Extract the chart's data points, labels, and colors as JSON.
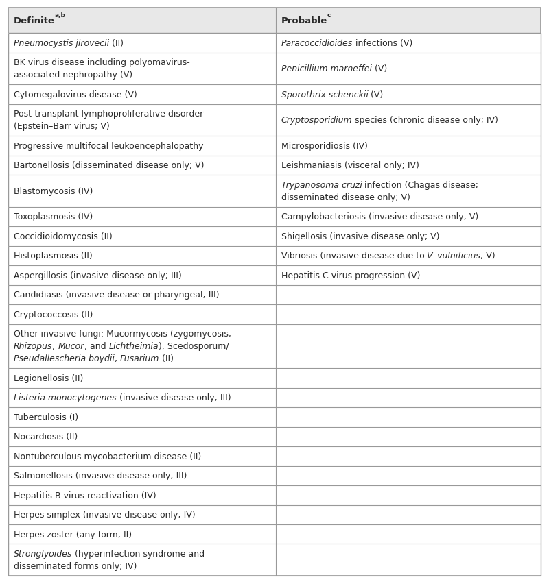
{
  "col1_header": "Definite",
  "col1_header_super": "a,b",
  "col2_header": "Probable",
  "col2_header_super": "c",
  "rows": [
    {
      "col1_lines": [
        [
          "Pneumocystis jirovecii",
          true,
          " (II)",
          false
        ]
      ],
      "col2_lines": [
        [
          "Paracoccidioides",
          true,
          " infections (V)",
          false
        ]
      ]
    },
    {
      "col1_lines": [
        [
          "BK virus disease including polyomavirus-",
          false
        ],
        [
          "associated nephropathy (V)",
          false
        ]
      ],
      "col2_lines": [
        [
          "Penicillium marneffei",
          true,
          " (V)",
          false
        ]
      ]
    },
    {
      "col1_lines": [
        [
          "Cytomegalovirus disease (V)",
          false
        ]
      ],
      "col2_lines": [
        [
          "Sporothrix schenckii",
          true,
          " (V)",
          false
        ]
      ]
    },
    {
      "col1_lines": [
        [
          "Post-transplant lymphoproliferative disorder",
          false
        ],
        [
          "(Epstein–Barr virus; V)",
          false
        ]
      ],
      "col2_lines": [
        [
          "Cryptosporidium",
          true,
          " species (chronic disease only; IV)",
          false
        ]
      ]
    },
    {
      "col1_lines": [
        [
          "Progressive multifocal leukoencephalopathy",
          false
        ]
      ],
      "col2_lines": [
        [
          "Microsporidiosis (IV)",
          false
        ]
      ]
    },
    {
      "col1_lines": [
        [
          "Bartonellosis (disseminated disease only; V)",
          false
        ]
      ],
      "col2_lines": [
        [
          "Leishmaniasis (visceral only; IV)",
          false
        ]
      ]
    },
    {
      "col1_lines": [
        [
          "Blastomycosis (IV)",
          false
        ]
      ],
      "col2_lines": [
        [
          "Trypanosoma cruzi",
          true,
          " infection (Chagas disease;",
          false
        ],
        [
          "disseminated disease only; V)",
          false
        ]
      ]
    },
    {
      "col1_lines": [
        [
          "Toxoplasmosis (IV)",
          false
        ]
      ],
      "col2_lines": [
        [
          "Campylobacteriosis (invasive disease only; V)",
          false
        ]
      ]
    },
    {
      "col1_lines": [
        [
          "Coccidioidomycosis (II)",
          false
        ]
      ],
      "col2_lines": [
        [
          "Shigellosis (invasive disease only; V)",
          false
        ]
      ]
    },
    {
      "col1_lines": [
        [
          "Histoplasmosis (II)",
          false
        ]
      ],
      "col2_lines": [
        [
          "Vibriosis (invasive disease due to ",
          false,
          "V. vulnificius",
          true,
          "; V)",
          false
        ]
      ]
    },
    {
      "col1_lines": [
        [
          "Aspergillosis (invasive disease only; III)",
          false
        ]
      ],
      "col2_lines": [
        [
          "Hepatitis C virus progression (V)",
          false
        ]
      ]
    },
    {
      "col1_lines": [
        [
          "Candidiasis (invasive disease or pharyngeal; III)",
          false
        ]
      ],
      "col2_lines": []
    },
    {
      "col1_lines": [
        [
          "Cryptococcosis (II)",
          false
        ]
      ],
      "col2_lines": []
    },
    {
      "col1_lines": [
        [
          "Other invasive fungi: Mucormycosis (zygomycosis;",
          false
        ],
        [
          "Rhizopus",
          true,
          ", ",
          false,
          "Mucor",
          true,
          ", and ",
          false,
          "Lichtheimia",
          true,
          "), Scedosporum/",
          false
        ],
        [
          "Pseudallescheria boydii",
          true,
          ", ",
          false,
          "Fusarium",
          true,
          " (II)",
          false
        ]
      ],
      "col2_lines": []
    },
    {
      "col1_lines": [
        [
          "Legionellosis (II)",
          false
        ]
      ],
      "col2_lines": []
    },
    {
      "col1_lines": [
        [
          "Listeria monocytogenes",
          true,
          " (invasive disease only; III)",
          false
        ]
      ],
      "col2_lines": []
    },
    {
      "col1_lines": [
        [
          "Tuberculosis (I)",
          false
        ]
      ],
      "col2_lines": []
    },
    {
      "col1_lines": [
        [
          "Nocardiosis (II)",
          false
        ]
      ],
      "col2_lines": []
    },
    {
      "col1_lines": [
        [
          "Nontuberculous mycobacterium disease (II)",
          false
        ]
      ],
      "col2_lines": []
    },
    {
      "col1_lines": [
        [
          "Salmonellosis (invasive disease only; III)",
          false
        ]
      ],
      "col2_lines": []
    },
    {
      "col1_lines": [
        [
          "Hepatitis B virus reactivation (IV)",
          false
        ]
      ],
      "col2_lines": []
    },
    {
      "col1_lines": [
        [
          "Herpes simplex (invasive disease only; IV)",
          false
        ]
      ],
      "col2_lines": []
    },
    {
      "col1_lines": [
        [
          "Herpes zoster (any form; II)",
          false
        ]
      ],
      "col2_lines": []
    },
    {
      "col1_lines": [
        [
          "Stronglyoides",
          true,
          " (hyperinfection syndrome and",
          false
        ],
        [
          "disseminated forms only; IV)",
          false
        ]
      ],
      "col2_lines": []
    }
  ],
  "bg_color": "#ffffff",
  "header_bg": "#e8e8e8",
  "line_color": "#999999",
  "text_color": "#2a2a2a",
  "font_size": 9.0,
  "header_font_size": 9.5,
  "col_split": 0.502
}
